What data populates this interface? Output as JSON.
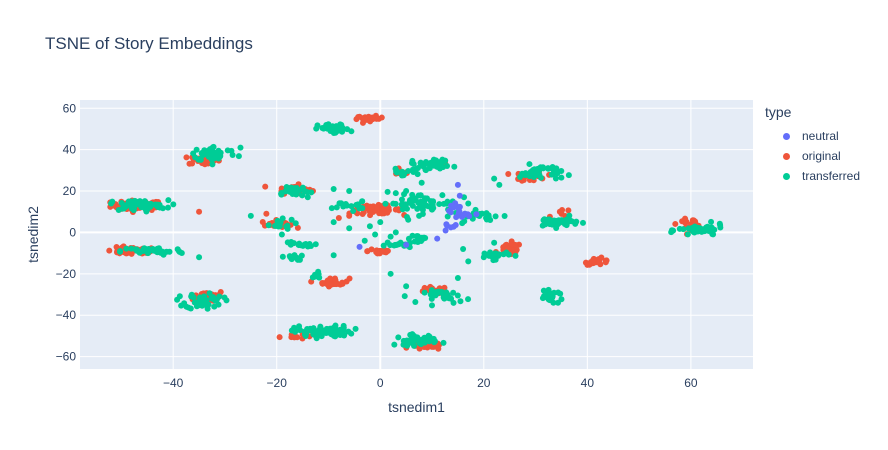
{
  "chart_data": {
    "type": "scatter",
    "title": "TSNE of Story Embeddings",
    "xlabel": "tsnedim1",
    "ylabel": "tsnedim2",
    "xlim": [
      -58,
      72
    ],
    "ylim": [
      -66,
      64
    ],
    "xticks": [
      -40,
      -20,
      0,
      20,
      40,
      60
    ],
    "yticks": [
      -60,
      -40,
      -20,
      0,
      20,
      40,
      60
    ],
    "grid": true,
    "legend_title": "type",
    "legend_position": "right",
    "series": [
      {
        "name": "neutral",
        "color": "#636efa",
        "clusters": [
          {
            "cx": 15,
            "cy": 10,
            "sx": 1.2,
            "sy": 3,
            "n": 20
          },
          {
            "cx": 13,
            "cy": 2,
            "sx": 0.8,
            "sy": 1.5,
            "n": 5
          }
        ],
        "points": [
          [
            15,
            23
          ],
          [
            -4,
            -7
          ],
          [
            11,
            -3
          ],
          [
            5,
            -6
          ]
        ]
      },
      {
        "name": "original",
        "color": "#ef553b",
        "clusters": [
          {
            "cx": -47,
            "cy": 13,
            "sx": 2.5,
            "sy": 1.2,
            "n": 55
          },
          {
            "cx": -48,
            "cy": -9,
            "sx": 2.5,
            "sy": 0.9,
            "n": 50
          },
          {
            "cx": -34,
            "cy": 35,
            "sx": 1.5,
            "sy": 1.2,
            "n": 30
          },
          {
            "cx": -33,
            "cy": -31,
            "sx": 1.5,
            "sy": 1.5,
            "n": 35
          },
          {
            "cx": -17,
            "cy": 21,
            "sx": 1.5,
            "sy": 1.0,
            "n": 25
          },
          {
            "cx": -20,
            "cy": 4,
            "sx": 1.5,
            "sy": 0.9,
            "n": 18
          },
          {
            "cx": -17,
            "cy": -50,
            "sx": 1.2,
            "sy": 0.8,
            "n": 12
          },
          {
            "cx": -9,
            "cy": -24,
            "sx": 1.5,
            "sy": 1.0,
            "n": 30
          },
          {
            "cx": -2,
            "cy": 55,
            "sx": 1.3,
            "sy": 0.6,
            "n": 30
          },
          {
            "cx": -1,
            "cy": 11,
            "sx": 2.5,
            "sy": 1.0,
            "n": 55
          },
          {
            "cx": 0,
            "cy": -9,
            "sx": 1.2,
            "sy": 1.0,
            "n": 20
          },
          {
            "cx": 4,
            "cy": 29,
            "sx": 1.0,
            "sy": 0.6,
            "n": 10
          },
          {
            "cx": 10,
            "cy": -28,
            "sx": 1.5,
            "sy": 0.8,
            "n": 22
          },
          {
            "cx": 9,
            "cy": -55,
            "sx": 1.5,
            "sy": 0.8,
            "n": 28
          },
          {
            "cx": 25,
            "cy": -8,
            "sx": 1.2,
            "sy": 1.5,
            "n": 30
          },
          {
            "cx": 29,
            "cy": 27,
            "sx": 1.5,
            "sy": 1.2,
            "n": 25
          },
          {
            "cx": 35,
            "cy": 8,
            "sx": 1.0,
            "sy": 2.0,
            "n": 12
          },
          {
            "cx": 42,
            "cy": -14,
            "sx": 1.2,
            "sy": 0.8,
            "n": 25
          },
          {
            "cx": 60,
            "cy": 4,
            "sx": 1.3,
            "sy": 1.2,
            "n": 25
          },
          {
            "cx": 10,
            "cy": 33,
            "sx": 0.8,
            "sy": 0.6,
            "n": 6
          }
        ],
        "points": [
          [
            -35,
            10
          ],
          [
            -13,
            20
          ],
          [
            -22,
            9
          ],
          [
            -6,
            8
          ],
          [
            -8,
            7
          ]
        ]
      },
      {
        "name": "transferred",
        "color": "#00cc96",
        "clusters": [
          {
            "cx": -47,
            "cy": 13,
            "sx": 3.0,
            "sy": 1.3,
            "n": 45
          },
          {
            "cx": -44,
            "cy": -9,
            "sx": 3.0,
            "sy": 1.0,
            "n": 45
          },
          {
            "cx": -32,
            "cy": 38,
            "sx": 2.2,
            "sy": 1.8,
            "n": 45
          },
          {
            "cx": -34,
            "cy": -33,
            "sx": 1.8,
            "sy": 2.0,
            "n": 45
          },
          {
            "cx": -17,
            "cy": 20,
            "sx": 2.0,
            "sy": 1.5,
            "n": 25
          },
          {
            "cx": -20,
            "cy": 4,
            "sx": 1.8,
            "sy": 1.2,
            "n": 15
          },
          {
            "cx": -16,
            "cy": -6,
            "sx": 1.5,
            "sy": 0.8,
            "n": 15
          },
          {
            "cx": -17,
            "cy": -12,
            "sx": 1.0,
            "sy": 0.7,
            "n": 12
          },
          {
            "cx": -11,
            "cy": -48,
            "sx": 2.8,
            "sy": 1.4,
            "n": 75
          },
          {
            "cx": -9,
            "cy": 50,
            "sx": 1.5,
            "sy": 1.2,
            "n": 35
          },
          {
            "cx": -12,
            "cy": -21,
            "sx": 1.0,
            "sy": 0.8,
            "n": 10
          },
          {
            "cx": -6,
            "cy": 13,
            "sx": 1.5,
            "sy": 1.0,
            "n": 15
          },
          {
            "cx": 10,
            "cy": 33,
            "sx": 2.0,
            "sy": 1.3,
            "n": 35
          },
          {
            "cx": 4,
            "cy": 29,
            "sx": 1.5,
            "sy": 0.8,
            "n": 12
          },
          {
            "cx": 7,
            "cy": 14,
            "sx": 3.5,
            "sy": 2.5,
            "n": 55
          },
          {
            "cx": 4,
            "cy": -6,
            "sx": 1.5,
            "sy": 0.7,
            "n": 15
          },
          {
            "cx": 8,
            "cy": -3,
            "sx": 1.5,
            "sy": 1.0,
            "n": 12
          },
          {
            "cx": 13,
            "cy": -31,
            "sx": 2.2,
            "sy": 1.5,
            "n": 30
          },
          {
            "cx": 7,
            "cy": -52,
            "sx": 2.0,
            "sy": 1.3,
            "n": 40
          },
          {
            "cx": 19,
            "cy": 8,
            "sx": 2.5,
            "sy": 1.2,
            "n": 25
          },
          {
            "cx": 22,
            "cy": -11,
            "sx": 1.5,
            "sy": 1.0,
            "n": 20
          },
          {
            "cx": 31,
            "cy": 29,
            "sx": 2.0,
            "sy": 1.8,
            "n": 40
          },
          {
            "cx": 34,
            "cy": 5,
            "sx": 2.2,
            "sy": 1.2,
            "n": 40
          },
          {
            "cx": 33,
            "cy": -31,
            "sx": 1.2,
            "sy": 1.2,
            "n": 22
          },
          {
            "cx": 62,
            "cy": 1,
            "sx": 2.2,
            "sy": 1.4,
            "n": 45
          }
        ],
        "points": [
          [
            -52,
            14
          ],
          [
            -41,
            12
          ],
          [
            -27,
            41
          ],
          [
            -35,
            -12
          ],
          [
            -25,
            8
          ],
          [
            -14,
            17
          ],
          [
            -2,
            3
          ],
          [
            -6,
            2
          ],
          [
            -9,
            5
          ],
          [
            3,
            0
          ],
          [
            2,
            -2
          ],
          [
            -3,
            -4
          ],
          [
            -1,
            -1
          ],
          [
            0,
            5
          ],
          [
            10,
            11
          ],
          [
            12,
            18
          ],
          [
            14,
            15
          ],
          [
            17,
            14
          ],
          [
            5,
            20
          ],
          [
            3,
            19
          ],
          [
            8,
            24
          ],
          [
            22,
            26
          ],
          [
            23,
            23
          ],
          [
            16,
            -8
          ],
          [
            17,
            -14
          ],
          [
            20,
            -12
          ],
          [
            15,
            -22
          ],
          [
            -12,
            -19
          ],
          [
            -9,
            -11
          ],
          [
            2,
            -20
          ],
          [
            5,
            -26
          ],
          [
            22,
            -5
          ],
          [
            -19,
            -1
          ],
          [
            -9,
            21
          ],
          [
            -6,
            20
          ]
        ]
      }
    ]
  }
}
